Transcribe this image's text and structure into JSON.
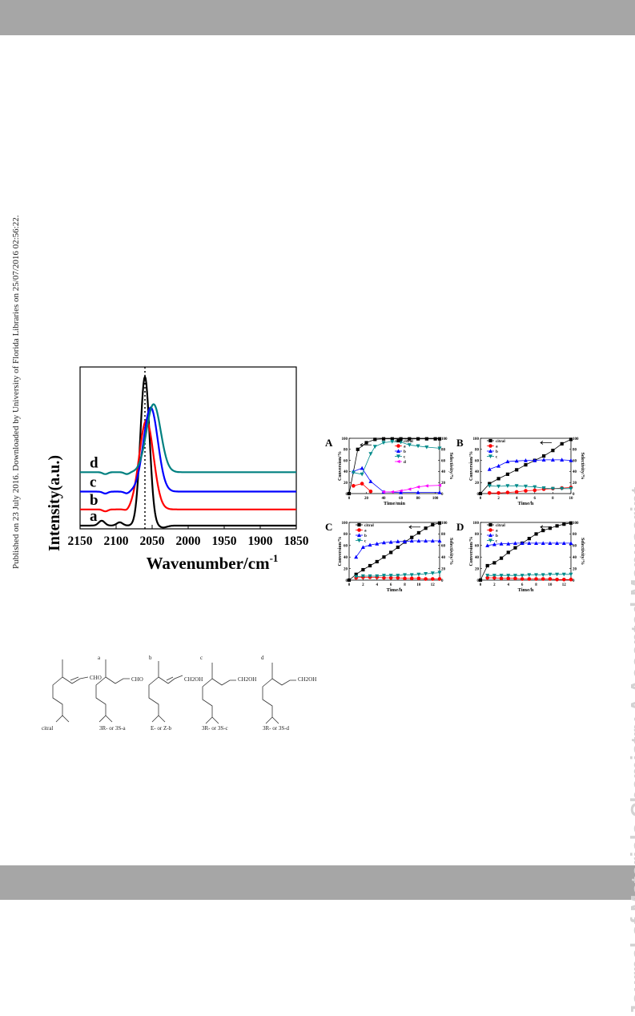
{
  "side_note": "Published on 23 July 2016. Downloaded by University of Florida Libraries on 25/07/2016 02:56:22.",
  "watermark": "Journal of Materials Chemistry A Accepted Manuscript",
  "colors": {
    "bar": "#a6a6a6",
    "series": {
      "a": "#000000",
      "b": "#ff0000",
      "c": "#0000ff",
      "d": "#008080"
    },
    "kinetics": {
      "citral": "#000000",
      "a": "#ff0000",
      "b": "#0000ff",
      "c": "#008b8b",
      "d": "#ff00ff"
    }
  },
  "ir": {
    "chart_data": {
      "type": "line",
      "xlabel": "Wavenumber/cm",
      "xlabel_sup": "-1",
      "ylabel": "Intensity(a.u.)",
      "xlim": [
        2150,
        1850
      ],
      "x_ticks": [
        "2150",
        "2100",
        "2050",
        "2000",
        "1950",
        "1900",
        "1850"
      ],
      "reference_line_x": 2060,
      "series": [
        {
          "name": "a",
          "peak_x": 2060,
          "baseline": 0.02,
          "peak": 0.92
        },
        {
          "name": "b",
          "peak_x": 2058,
          "baseline": 0.12,
          "peak": 0.55
        },
        {
          "name": "c",
          "peak_x": 2052,
          "baseline": 0.23,
          "peak": 0.52
        },
        {
          "name": "d",
          "peak_x": 2048,
          "baseline": 0.35,
          "peak": 0.42
        }
      ]
    }
  },
  "kinetics": {
    "chart_data": [
      {
        "panel": "A",
        "type": "line",
        "xlabel": "Time/min",
        "ylabel": "Conversion/%",
        "y2label": "Selectivity/%",
        "xlim": [
          0,
          105
        ],
        "ylim": [
          0,
          100
        ],
        "x_ticks": [
          "0",
          "20",
          "40",
          "60",
          "80",
          "100"
        ],
        "y_ticks": [
          "0",
          "20",
          "40",
          "60",
          "80",
          "100"
        ],
        "legend": [
          "citral",
          "a",
          "b",
          "c",
          "d"
        ],
        "series": [
          {
            "name": "citral",
            "x": [
              0,
              10,
              20,
              30,
              40,
              50,
              60,
              70,
              80,
              90,
              100,
              105
            ],
            "y": [
              0,
              80,
              92,
              98,
              99,
              99,
              99,
              99,
              99,
              99,
              99,
              99
            ]
          },
          {
            "name": "a",
            "x": [
              5,
              15,
              25
            ],
            "y": [
              14,
              18,
              4
            ]
          },
          {
            "name": "b",
            "x": [
              5,
              15,
              25,
              40,
              60,
              80,
              105
            ],
            "y": [
              40,
              46,
              22,
              3,
              2,
              2,
              2
            ]
          },
          {
            "name": "c",
            "x": [
              5,
              15,
              25,
              30,
              40,
              50,
              60,
              70,
              80,
              90,
              105
            ],
            "y": [
              38,
              35,
              72,
              85,
              92,
              94,
              93,
              88,
              86,
              84,
              82
            ]
          },
          {
            "name": "d",
            "x": [
              40,
              50,
              60,
              70,
              80,
              90,
              105
            ],
            "y": [
              3,
              3,
              5,
              8,
              12,
              14,
              15
            ]
          }
        ]
      },
      {
        "panel": "B",
        "type": "line",
        "xlabel": "Time/h",
        "ylabel": "Conversion/%",
        "y2label": "Selectivity/%",
        "xlim": [
          0,
          10
        ],
        "ylim": [
          0,
          100
        ],
        "x_ticks": [
          "0",
          "2",
          "4",
          "6",
          "8",
          "10"
        ],
        "y_ticks": [
          "0",
          "20",
          "40",
          "60",
          "80",
          "100"
        ],
        "legend": [
          "citral",
          "a",
          "b",
          "c"
        ],
        "series": [
          {
            "name": "citral",
            "x": [
              0,
              1,
              2,
              3,
              4,
              5,
              6,
              7,
              8,
              9,
              10
            ],
            "y": [
              0,
              18,
              27,
              35,
              43,
              52,
              60,
              68,
              78,
              90,
              98
            ]
          },
          {
            "name": "a",
            "x": [
              1,
              2,
              3,
              4,
              5,
              6,
              7,
              8,
              9,
              10
            ],
            "y": [
              1,
              1,
              2,
              3,
              5,
              6,
              8,
              9,
              10,
              11
            ]
          },
          {
            "name": "b",
            "x": [
              1,
              2,
              3,
              4,
              5,
              6,
              7,
              8,
              9,
              10
            ],
            "y": [
              44,
              50,
              58,
              59,
              60,
              60,
              61,
              61,
              61,
              60
            ]
          },
          {
            "name": "c",
            "x": [
              1,
              2,
              3,
              4,
              5,
              6,
              7,
              8,
              9,
              10
            ],
            "y": [
              14,
              13,
              14,
              14,
              13,
              12,
              10,
              9,
              9,
              9
            ]
          }
        ]
      },
      {
        "panel": "C",
        "type": "line",
        "xlabel": "Time/h",
        "ylabel": "Conversion/%",
        "y2label": "Selectivity/%",
        "xlim": [
          0,
          13
        ],
        "ylim": [
          0,
          100
        ],
        "x_ticks": [
          "0",
          "2",
          "4",
          "6",
          "8",
          "10",
          "12"
        ],
        "y_ticks": [
          "0",
          "20",
          "40",
          "60",
          "80",
          "100"
        ],
        "legend": [
          "citral",
          "a",
          "b",
          "c"
        ],
        "series": [
          {
            "name": "citral",
            "x": [
              0,
              1,
              2,
              3,
              4,
              5,
              6,
              7,
              8,
              9,
              10,
              11,
              12,
              13
            ],
            "y": [
              0,
              10,
              18,
              25,
              32,
              40,
              48,
              57,
              66,
              74,
              82,
              90,
              96,
              99
            ]
          },
          {
            "name": "a",
            "x": [
              1,
              2,
              3,
              4,
              5,
              6,
              7,
              8,
              9,
              10,
              11,
              12,
              13
            ],
            "y": [
              4,
              5,
              5,
              5,
              4,
              4,
              4,
              3,
              3,
              3,
              2,
              2,
              2
            ]
          },
          {
            "name": "b",
            "x": [
              1,
              2,
              3,
              4,
              5,
              6,
              7,
              8,
              9,
              10,
              11,
              12,
              13
            ],
            "y": [
              40,
              57,
              61,
              63,
              65,
              66,
              67,
              67,
              68,
              68,
              68,
              68,
              68
            ]
          },
          {
            "name": "c",
            "x": [
              1,
              2,
              3,
              4,
              5,
              6,
              7,
              8,
              9,
              10,
              11,
              12,
              13
            ],
            "y": [
              6,
              7,
              7,
              7,
              8,
              8,
              8,
              9,
              9,
              10,
              11,
              12,
              13
            ]
          }
        ]
      },
      {
        "panel": "D",
        "type": "line",
        "xlabel": "Time/h",
        "ylabel": "Conversion/%",
        "y2label": "Selectivity/%",
        "xlim": [
          0,
          13
        ],
        "ylim": [
          0,
          100
        ],
        "x_ticks": [
          "0",
          "2",
          "4",
          "6",
          "8",
          "10",
          "12"
        ],
        "y_ticks": [
          "0",
          "20",
          "40",
          "60",
          "80",
          "100"
        ],
        "legend": [
          "citral",
          "a",
          "b",
          "c"
        ],
        "series": [
          {
            "name": "citral",
            "x": [
              0,
              1,
              2,
              3,
              4,
              5,
              6,
              7,
              8,
              9,
              10,
              11,
              12,
              13
            ],
            "y": [
              0,
              25,
              30,
              38,
              48,
              56,
              64,
              72,
              80,
              86,
              90,
              94,
              97,
              99
            ]
          },
          {
            "name": "a",
            "x": [
              1,
              2,
              3,
              4,
              5,
              6,
              7,
              8,
              9,
              10,
              11,
              12,
              13
            ],
            "y": [
              4,
              4,
              3,
              3,
              3,
              2,
              2,
              2,
              2,
              2,
              1,
              1,
              1
            ]
          },
          {
            "name": "b",
            "x": [
              1,
              2,
              3,
              4,
              5,
              6,
              7,
              8,
              9,
              10,
              11,
              12,
              13
            ],
            "y": [
              60,
              62,
              63,
              63,
              64,
              64,
              64,
              64,
              64,
              64,
              64,
              64,
              64
            ]
          },
          {
            "name": "c",
            "x": [
              1,
              2,
              3,
              4,
              5,
              6,
              7,
              8,
              9,
              10,
              11,
              12,
              13
            ],
            "y": [
              8,
              8,
              8,
              8,
              8,
              8,
              9,
              9,
              9,
              10,
              10,
              10,
              10
            ]
          }
        ]
      }
    ]
  },
  "molecules": [
    {
      "letter": "",
      "group": "CHO",
      "caption": "citral"
    },
    {
      "letter": "a",
      "group": "CHO",
      "caption": "3R- or 3S-a"
    },
    {
      "letter": "b",
      "group": "CH2OH",
      "caption": "E- or Z-b"
    },
    {
      "letter": "c",
      "group": "CH2OH",
      "caption": "3R- or 3S-c"
    },
    {
      "letter": "d",
      "group": "CH2OH",
      "caption": "3R- or 3S-d"
    }
  ]
}
